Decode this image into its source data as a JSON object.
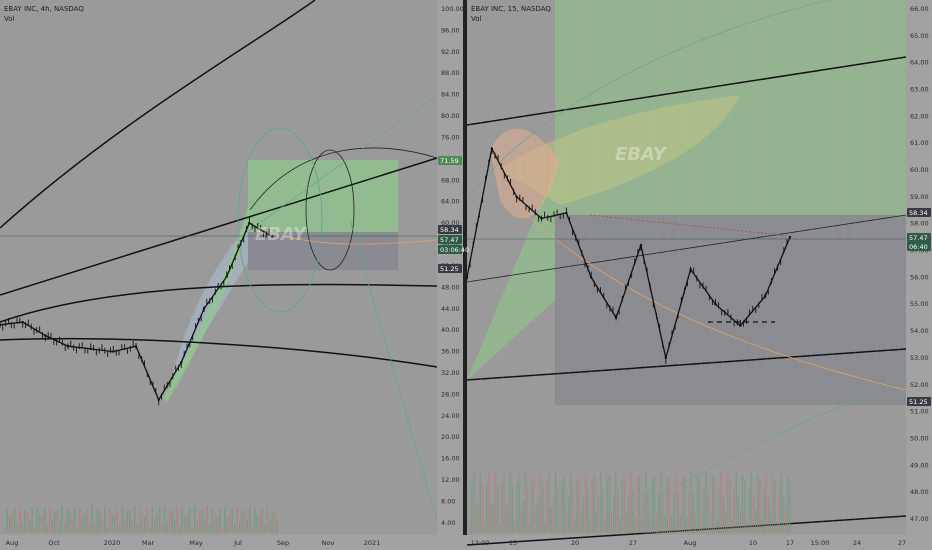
{
  "colors": {
    "background": "#9a9a9a",
    "axis_panel": "#a2a2a2",
    "candle": "#111111",
    "green_zone": "#8fc98a",
    "gray_zone": "#7a7a8a",
    "orange": "#e8a060",
    "teal_guide": "#5fa58f",
    "current_price": "#2e5b46"
  },
  "chart_data": [
    {
      "type": "candlestick",
      "panel": "left",
      "title": "EBAY INC, 4h, NASDAQ",
      "subtitle": "Vol",
      "watermark": "EBAY",
      "y_ticks": [
        "100.00",
        "96.00",
        "92.00",
        "88.00",
        "84.00",
        "80.00",
        "76.00",
        "72.00",
        "68.00",
        "64.00",
        "60.00",
        "56.00",
        "52.00",
        "48.00",
        "44.00",
        "40.00",
        "36.00",
        "32.00",
        "28.00",
        "24.00",
        "20.00",
        "16.00",
        "12.00",
        "8.00",
        "4.00"
      ],
      "x_ticks": [
        "Aug",
        "Oct",
        "2020",
        "Mar",
        "May",
        "Jul",
        "Sep",
        "Nov",
        "2021"
      ],
      "badges": [
        {
          "label": "71.59",
          "style": "green"
        },
        {
          "label": "58.34",
          "style": "dark"
        },
        {
          "label": "57.47",
          "style": "current"
        },
        {
          "label": "03:06:40",
          "style": "current"
        },
        {
          "label": "51.25",
          "style": "dark"
        }
      ],
      "price_path": [
        {
          "t": "Aug",
          "close": 41
        },
        {
          "t": "Sep",
          "close": 41.5
        },
        {
          "t": "Oct",
          "close": 39
        },
        {
          "t": "Nov",
          "close": 37
        },
        {
          "t": "Dec",
          "close": 36.5
        },
        {
          "t": "2020",
          "close": 36
        },
        {
          "t": "Feb",
          "close": 37
        },
        {
          "t": "Mar",
          "close": 27
        },
        {
          "t": "Apr",
          "close": 34
        },
        {
          "t": "May",
          "close": 44
        },
        {
          "t": "Jun",
          "close": 50
        },
        {
          "t": "Jul",
          "close": 60
        },
        {
          "t": "Aug",
          "close": 57.5
        }
      ]
    },
    {
      "type": "candlestick",
      "panel": "right",
      "title": "EBAY INC, 15, NASDAQ",
      "subtitle": "Vol",
      "watermark": "EBAY",
      "y_ticks": [
        "66.00",
        "65.00",
        "64.00",
        "63.00",
        "62.00",
        "61.00",
        "60.00",
        "59.00",
        "58.00",
        "57.00",
        "56.00",
        "55.00",
        "54.00",
        "53.00",
        "52.00",
        "51.00",
        "50.00",
        "49.00",
        "48.00",
        "47.00"
      ],
      "x_ticks": [
        "12:00",
        "13",
        "20",
        "27",
        "Aug",
        "10",
        "17",
        "15:00",
        "24",
        "27"
      ],
      "badges": [
        {
          "label": "58.34",
          "style": "dark"
        },
        {
          "label": "57.47",
          "style": "current"
        },
        {
          "label": "06:40",
          "style": "current"
        },
        {
          "label": "51.25",
          "style": "dark"
        }
      ],
      "price_path": [
        {
          "t": "12:00",
          "close": 56
        },
        {
          "t": "13a",
          "close": 60.8
        },
        {
          "t": "13b",
          "close": 59
        },
        {
          "t": "16",
          "close": 58.2
        },
        {
          "t": "20",
          "close": 58.4
        },
        {
          "t": "21",
          "close": 56
        },
        {
          "t": "24",
          "close": 54.5
        },
        {
          "t": "27",
          "close": 57.2
        },
        {
          "t": "28",
          "close": 53
        },
        {
          "t": "Aug",
          "close": 56.3
        },
        {
          "t": "5",
          "close": 55
        },
        {
          "t": "10",
          "close": 54.2
        },
        {
          "t": "12",
          "close": 55.3
        },
        {
          "t": "17",
          "close": 57.5
        }
      ]
    }
  ]
}
